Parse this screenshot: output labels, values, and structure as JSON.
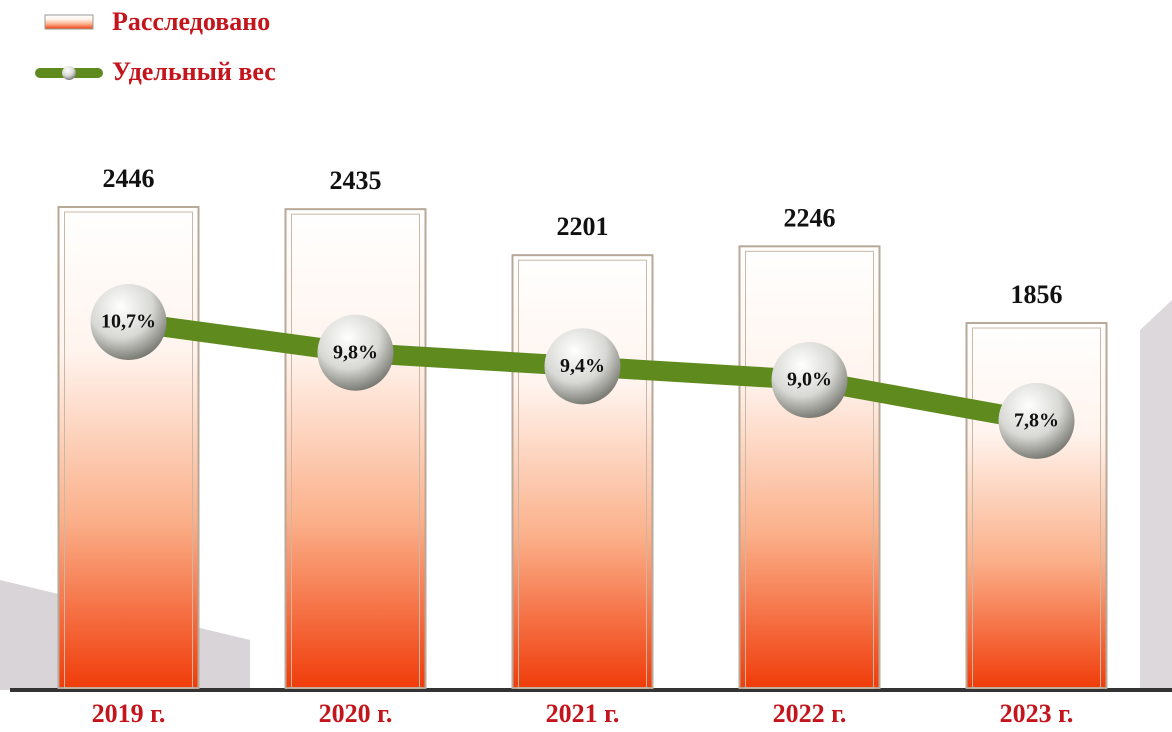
{
  "chart_data": {
    "type": "bar",
    "categories": [
      "2019 г.",
      "2020 г.",
      "2021 г.",
      "2022 г.",
      "2023 г."
    ],
    "series": [
      {
        "name": "Расследовано",
        "type": "bar",
        "color": "#f03c0a",
        "values": [
          2446,
          2435,
          2201,
          2246,
          1856
        ]
      },
      {
        "name": "Удельный вес",
        "type": "line",
        "color": "#5f8a1e",
        "values": [
          10.7,
          9.8,
          9.4,
          9.0,
          7.8
        ],
        "value_labels": [
          "10,7%",
          "9,8%",
          "9,4%",
          "9,0%",
          "7,8%"
        ]
      }
    ]
  }
}
